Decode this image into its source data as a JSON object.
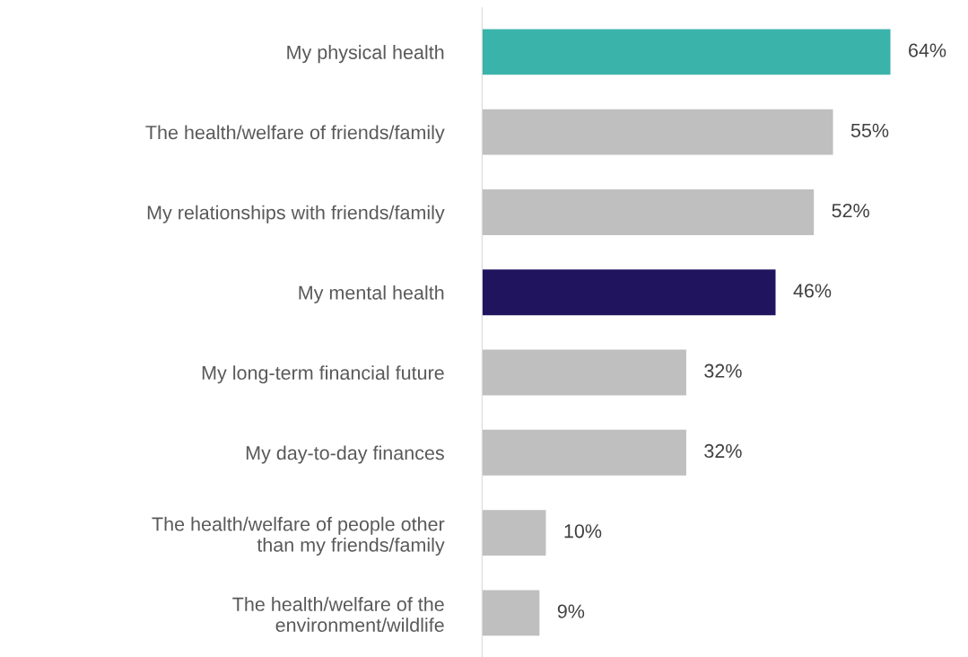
{
  "chart_data": {
    "type": "bar",
    "orientation": "horizontal",
    "categories": [
      "My physical health",
      "The health/welfare of friends/family",
      "My relationships with friends/family",
      "My mental health",
      "My long-term financial future",
      "My day-to-day finances",
      "The health/welfare of people other\nthan my friends/family",
      "The health/welfare of the\nenvironment/wildlife"
    ],
    "values": [
      64,
      55,
      52,
      46,
      32,
      32,
      10,
      9
    ],
    "colors": [
      "#3ab3aa",
      "#bfbfbf",
      "#bfbfbf",
      "#21145f",
      "#bfbfbf",
      "#bfbfbf",
      "#bfbfbf",
      "#bfbfbf"
    ],
    "value_labels": [
      "64%",
      "55%",
      "52%",
      "46%",
      "32%",
      "32%",
      "10%",
      "9%"
    ],
    "grid": false,
    "tick_labels": "y"
  }
}
